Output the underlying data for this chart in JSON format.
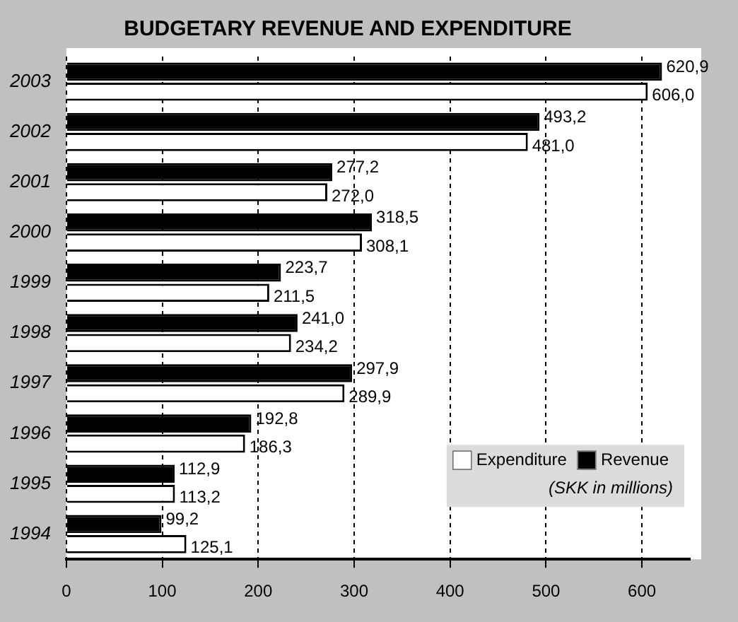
{
  "chart_data": {
    "type": "bar",
    "orientation": "horizontal",
    "title": "BUDGETARY REVENUE AND EXPENDITURE",
    "categories": [
      "2003",
      "2002",
      "2001",
      "2000",
      "1999",
      "1998",
      "1997",
      "1996",
      "1995",
      "1994"
    ],
    "series": [
      {
        "name": "Revenue",
        "color": "#000000",
        "values": [
          620.9,
          493.2,
          277.2,
          318.5,
          223.7,
          241.0,
          297.9,
          192.8,
          112.9,
          99.2
        ],
        "value_labels": [
          "620,9",
          "493,2",
          "277,2",
          "318,5",
          "223,7",
          "241,0",
          "297,9",
          "192,8",
          "112,9",
          "99,2"
        ]
      },
      {
        "name": "Expenditure",
        "color": "#ffffff",
        "values": [
          606.0,
          481.0,
          272.0,
          308.1,
          211.5,
          234.2,
          289.9,
          186.3,
          113.2,
          125.1
        ],
        "value_labels": [
          "606,0",
          "481,0",
          "272,0",
          "308,1",
          "211,5",
          "234,2",
          "289,9",
          "186,3",
          "113,2",
          "125,1"
        ]
      }
    ],
    "xlim": [
      0,
      650
    ],
    "xticks": [
      0,
      100,
      200,
      300,
      400,
      500,
      600
    ],
    "grid": "x",
    "legend": "bottom right",
    "annotations": [
      "(SKK in millions)"
    ]
  }
}
